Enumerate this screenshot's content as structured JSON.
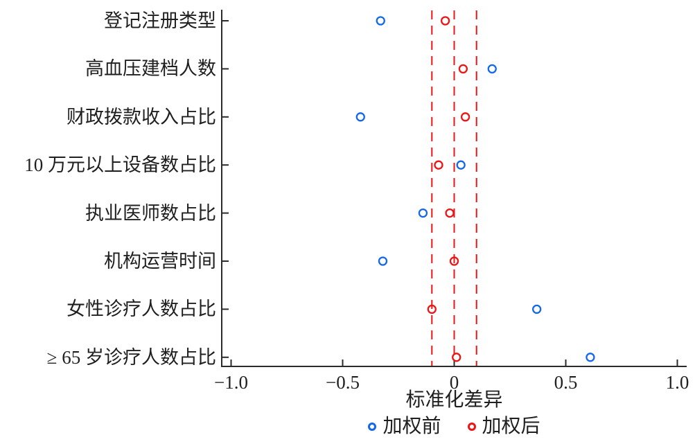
{
  "figure": {
    "background_color": "#ffffff",
    "text_color": "#1f1f1f",
    "axis_color": "#2a2a2a"
  },
  "chart_data": {
    "type": "scatter",
    "subtype": "covariate-balance-dot-plot",
    "title": "",
    "xlabel": "标准化差异",
    "ylabel": "",
    "xlim": [
      -1.0,
      1.0
    ],
    "xticks": [
      -1.0,
      -0.5,
      0,
      0.5,
      1.0
    ],
    "xtick_labels": [
      "−1.0",
      "−0.5",
      "0",
      "0.5",
      "1.0"
    ],
    "grid": false,
    "legend_position": "bottom",
    "categories": [
      "登记注册类型",
      "高血压建档人数",
      "财政拨款收入占比",
      "10 万元以上设备数占比",
      "执业医师数占比",
      "机构运营时间",
      "女性诊疗人数占比",
      "≥ 65 岁诊疗人数占比"
    ],
    "series": [
      {
        "name": "加权前",
        "marker": "open-circle",
        "color": "#1268e8",
        "values": [
          -0.33,
          0.17,
          -0.42,
          0.03,
          -0.14,
          -0.32,
          0.37,
          0.61
        ]
      },
      {
        "name": "加权后",
        "marker": "open-circle",
        "color": "#ec1414",
        "values": [
          -0.04,
          0.04,
          0.05,
          -0.07,
          -0.02,
          0.0,
          -0.1,
          0.01
        ]
      }
    ],
    "reference_lines": {
      "values": [
        -0.1,
        0,
        0.1
      ],
      "color": "#ec1414",
      "style": "dashed"
    }
  }
}
